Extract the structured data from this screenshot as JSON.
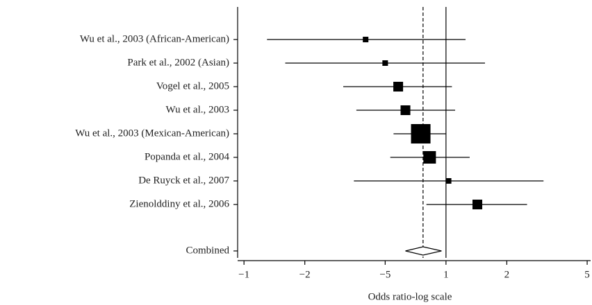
{
  "chart_data": {
    "type": "forest",
    "x_label": "Odds ratio-log scale",
    "xscale": "log",
    "xlim": [
      0.093,
      5.2
    ],
    "xticks": [
      {
        "value": 0.1,
        "label": "−1"
      },
      {
        "value": 0.2,
        "label": "−2"
      },
      {
        "value": 0.5,
        "label": "−5"
      },
      1,
      2,
      5
    ],
    "reference_line": 1,
    "color": "#000000",
    "studies": [
      {
        "label": "Wu et al., 2003 (African-American)",
        "estimate": 0.4,
        "lower": 0.13,
        "upper": 1.25,
        "weight": 3.4
      },
      {
        "label": "Park et al., 2002 (Asian)",
        "estimate": 0.5,
        "lower": 0.16,
        "upper": 1.56,
        "weight": 3.4
      },
      {
        "label": "Vogel et al., 2005",
        "estimate": 0.58,
        "lower": 0.31,
        "upper": 1.07,
        "weight": 10.4
      },
      {
        "label": "Wu et al., 2003",
        "estimate": 0.63,
        "lower": 0.36,
        "upper": 1.11,
        "weight": 10.4
      },
      {
        "label": "Wu et al., 2003 (Mexican-American)",
        "estimate": 0.75,
        "lower": 0.55,
        "upper": 1.0,
        "weight": 41.5
      },
      {
        "label": "Popanda et al., 2004",
        "estimate": 0.83,
        "lower": 0.53,
        "upper": 1.31,
        "weight": 17.2
      },
      {
        "label": "De Ruyck et al., 2007",
        "estimate": 1.03,
        "lower": 0.35,
        "upper": 3.04,
        "weight": 3.4
      },
      {
        "label": "Zienolddiny et al., 2006",
        "estimate": 1.43,
        "lower": 0.8,
        "upper": 2.52,
        "weight": 10.4
      }
    ],
    "combined": {
      "label": "Combined",
      "estimate": 0.77,
      "lower": 0.63,
      "upper": 0.95
    }
  }
}
